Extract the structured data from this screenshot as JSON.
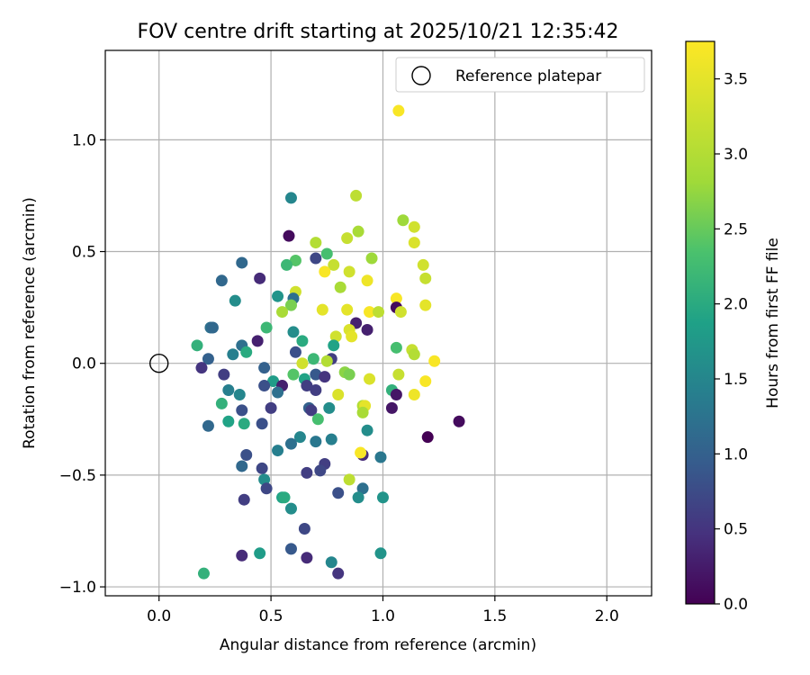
{
  "chart_data": {
    "type": "scatter",
    "title": "FOV centre drift starting at 2025/10/21 12:35:42",
    "xlabel": "Angular distance from reference (arcmin)",
    "ylabel": "Rotation from reference (arcmin)",
    "xlim": [
      -0.24,
      2.2
    ],
    "ylim": [
      -1.04,
      1.4
    ],
    "xticks": [
      0.0,
      0.5,
      1.0,
      1.5,
      2.0
    ],
    "xtick_labels": [
      "0.0",
      "0.5",
      "1.0",
      "1.5",
      "2.0"
    ],
    "yticks": [
      -1.0,
      -0.5,
      0.0,
      0.5,
      1.0
    ],
    "ytick_labels": [
      "−1.0",
      "−0.5",
      "0.0",
      "0.5",
      "1.0"
    ],
    "grid": true,
    "legend": {
      "placement": "top-right",
      "label": "Reference platepar"
    },
    "reference_point": {
      "x": 0.0,
      "y": 0.0
    },
    "colorbar": {
      "label": "Hours from first FF file",
      "min": 0.0,
      "max": 3.75,
      "ticks": [
        0.0,
        0.5,
        1.0,
        1.5,
        2.0,
        2.5,
        3.0,
        3.5
      ],
      "tick_labels": [
        "0.0",
        "0.5",
        "1.0",
        "1.5",
        "2.0",
        "2.5",
        "3.0",
        "3.5"
      ],
      "colormap": "viridis"
    },
    "points": [
      {
        "x": 1.07,
        "y": 1.13,
        "h": 3.7
      },
      {
        "x": 0.88,
        "y": 0.75,
        "h": 3.1
      },
      {
        "x": 0.59,
        "y": 0.74,
        "h": 1.5
      },
      {
        "x": 1.09,
        "y": 0.64,
        "h": 2.8
      },
      {
        "x": 1.14,
        "y": 0.61,
        "h": 3.3
      },
      {
        "x": 0.89,
        "y": 0.59,
        "h": 2.9
      },
      {
        "x": 0.58,
        "y": 0.57,
        "h": 0.1
      },
      {
        "x": 0.84,
        "y": 0.56,
        "h": 3.2
      },
      {
        "x": 0.7,
        "y": 0.54,
        "h": 3.0
      },
      {
        "x": 1.14,
        "y": 0.54,
        "h": 3.4
      },
      {
        "x": 0.75,
        "y": 0.49,
        "h": 2.3
      },
      {
        "x": 0.7,
        "y": 0.47,
        "h": 0.7
      },
      {
        "x": 0.95,
        "y": 0.47,
        "h": 2.8
      },
      {
        "x": 0.61,
        "y": 0.46,
        "h": 2.4
      },
      {
        "x": 0.57,
        "y": 0.44,
        "h": 2.2
      },
      {
        "x": 0.78,
        "y": 0.44,
        "h": 3.2
      },
      {
        "x": 1.18,
        "y": 0.44,
        "h": 3.3
      },
      {
        "x": 0.37,
        "y": 0.45,
        "h": 1.1
      },
      {
        "x": 0.85,
        "y": 0.41,
        "h": 3.3
      },
      {
        "x": 0.74,
        "y": 0.41,
        "h": 3.7
      },
      {
        "x": 0.45,
        "y": 0.38,
        "h": 0.4
      },
      {
        "x": 1.19,
        "y": 0.38,
        "h": 3.2
      },
      {
        "x": 0.93,
        "y": 0.37,
        "h": 3.6
      },
      {
        "x": 0.28,
        "y": 0.37,
        "h": 1.1
      },
      {
        "x": 0.81,
        "y": 0.34,
        "h": 2.9
      },
      {
        "x": 0.61,
        "y": 0.32,
        "h": 3.3
      },
      {
        "x": 0.53,
        "y": 0.3,
        "h": 1.7
      },
      {
        "x": 0.6,
        "y": 0.29,
        "h": 1.2
      },
      {
        "x": 1.06,
        "y": 0.29,
        "h": 3.7
      },
      {
        "x": 0.34,
        "y": 0.28,
        "h": 1.6
      },
      {
        "x": 0.59,
        "y": 0.26,
        "h": 2.6
      },
      {
        "x": 1.19,
        "y": 0.26,
        "h": 3.5
      },
      {
        "x": 1.06,
        "y": 0.25,
        "h": 0.1
      },
      {
        "x": 0.73,
        "y": 0.24,
        "h": 3.5
      },
      {
        "x": 0.84,
        "y": 0.24,
        "h": 3.5
      },
      {
        "x": 0.55,
        "y": 0.23,
        "h": 2.9
      },
      {
        "x": 0.94,
        "y": 0.23,
        "h": 3.7
      },
      {
        "x": 0.98,
        "y": 0.23,
        "h": 3.1
      },
      {
        "x": 1.08,
        "y": 0.23,
        "h": 3.3
      },
      {
        "x": 0.88,
        "y": 0.18,
        "h": 0.3
      },
      {
        "x": 0.23,
        "y": 0.16,
        "h": 1.2
      },
      {
        "x": 0.48,
        "y": 0.16,
        "h": 2.2
      },
      {
        "x": 0.24,
        "y": 0.16,
        "h": 1.1
      },
      {
        "x": 0.85,
        "y": 0.15,
        "h": 3.4
      },
      {
        "x": 0.93,
        "y": 0.15,
        "h": 0.3
      },
      {
        "x": 0.6,
        "y": 0.14,
        "h": 1.6
      },
      {
        "x": 0.86,
        "y": 0.12,
        "h": 3.5
      },
      {
        "x": 0.79,
        "y": 0.12,
        "h": 3.3
      },
      {
        "x": 0.64,
        "y": 0.1,
        "h": 2.0
      },
      {
        "x": 0.44,
        "y": 0.1,
        "h": 0.3
      },
      {
        "x": 0.78,
        "y": 0.08,
        "h": 1.9
      },
      {
        "x": 0.37,
        "y": 0.08,
        "h": 1.2
      },
      {
        "x": 0.17,
        "y": 0.08,
        "h": 2.1
      },
      {
        "x": 0.39,
        "y": 0.05,
        "h": 2.0
      },
      {
        "x": 0.61,
        "y": 0.05,
        "h": 0.8
      },
      {
        "x": 1.06,
        "y": 0.07,
        "h": 2.3
      },
      {
        "x": 1.13,
        "y": 0.06,
        "h": 3.2
      },
      {
        "x": 0.33,
        "y": 0.04,
        "h": 1.4
      },
      {
        "x": 1.14,
        "y": 0.04,
        "h": 3.0
      },
      {
        "x": 0.22,
        "y": 0.02,
        "h": 1.0
      },
      {
        "x": 0.77,
        "y": 0.02,
        "h": 0.6
      },
      {
        "x": 0.69,
        "y": 0.02,
        "h": 2.2
      },
      {
        "x": 0.64,
        "y": 0.0,
        "h": 3.3
      },
      {
        "x": 0.75,
        "y": 0.01,
        "h": 3.0
      },
      {
        "x": 1.23,
        "y": 0.01,
        "h": 3.7
      },
      {
        "x": 0.19,
        "y": -0.02,
        "h": 0.5
      },
      {
        "x": 0.29,
        "y": -0.05,
        "h": 0.6
      },
      {
        "x": 0.47,
        "y": -0.02,
        "h": 1.0
      },
      {
        "x": 0.6,
        "y": -0.05,
        "h": 2.4
      },
      {
        "x": 0.83,
        "y": -0.04,
        "h": 2.7
      },
      {
        "x": 0.85,
        "y": -0.05,
        "h": 2.6
      },
      {
        "x": 1.07,
        "y": -0.05,
        "h": 3.2
      },
      {
        "x": 0.7,
        "y": -0.05,
        "h": 0.9
      },
      {
        "x": 0.74,
        "y": -0.06,
        "h": 0.5
      },
      {
        "x": 0.65,
        "y": -0.07,
        "h": 1.9
      },
      {
        "x": 0.51,
        "y": -0.08,
        "h": 1.8
      },
      {
        "x": 0.94,
        "y": -0.07,
        "h": 3.4
      },
      {
        "x": 1.19,
        "y": -0.08,
        "h": 3.7
      },
      {
        "x": 0.66,
        "y": -0.1,
        "h": 0.6
      },
      {
        "x": 0.47,
        "y": -0.1,
        "h": 0.8
      },
      {
        "x": 0.55,
        "y": -0.1,
        "h": 0.3
      },
      {
        "x": 0.7,
        "y": -0.12,
        "h": 0.6
      },
      {
        "x": 1.04,
        "y": -0.12,
        "h": 2.1
      },
      {
        "x": 0.31,
        "y": -0.12,
        "h": 1.4
      },
      {
        "x": 0.53,
        "y": -0.13,
        "h": 1.2
      },
      {
        "x": 0.36,
        "y": -0.14,
        "h": 1.5
      },
      {
        "x": 0.8,
        "y": -0.14,
        "h": 3.4
      },
      {
        "x": 1.06,
        "y": -0.14,
        "h": 0.2
      },
      {
        "x": 1.14,
        "y": -0.14,
        "h": 3.6
      },
      {
        "x": 0.28,
        "y": -0.18,
        "h": 2.1
      },
      {
        "x": 0.91,
        "y": -0.19,
        "h": 3.0
      },
      {
        "x": 0.92,
        "y": -0.19,
        "h": 3.5
      },
      {
        "x": 0.76,
        "y": -0.2,
        "h": 1.6
      },
      {
        "x": 0.5,
        "y": -0.2,
        "h": 0.6
      },
      {
        "x": 0.67,
        "y": -0.2,
        "h": 1.0
      },
      {
        "x": 0.68,
        "y": -0.21,
        "h": 0.6
      },
      {
        "x": 1.04,
        "y": -0.2,
        "h": 0.2
      },
      {
        "x": 0.37,
        "y": -0.21,
        "h": 0.8
      },
      {
        "x": 0.91,
        "y": -0.22,
        "h": 2.9
      },
      {
        "x": 0.71,
        "y": -0.25,
        "h": 2.3
      },
      {
        "x": 0.31,
        "y": -0.26,
        "h": 1.9
      },
      {
        "x": 0.38,
        "y": -0.27,
        "h": 2.0
      },
      {
        "x": 0.46,
        "y": -0.27,
        "h": 0.8
      },
      {
        "x": 0.22,
        "y": -0.28,
        "h": 1.1
      },
      {
        "x": 0.93,
        "y": -0.3,
        "h": 1.6
      },
      {
        "x": 1.34,
        "y": -0.26,
        "h": 0.1
      },
      {
        "x": 1.2,
        "y": -0.33,
        "h": 0.0
      },
      {
        "x": 0.63,
        "y": -0.33,
        "h": 1.5
      },
      {
        "x": 0.7,
        "y": -0.35,
        "h": 1.3
      },
      {
        "x": 0.77,
        "y": -0.34,
        "h": 1.4
      },
      {
        "x": 0.59,
        "y": -0.36,
        "h": 1.2
      },
      {
        "x": 0.53,
        "y": -0.39,
        "h": 1.4
      },
      {
        "x": 0.91,
        "y": -0.41,
        "h": 0.4
      },
      {
        "x": 0.9,
        "y": -0.4,
        "h": 3.7
      },
      {
        "x": 0.99,
        "y": -0.42,
        "h": 1.3
      },
      {
        "x": 0.39,
        "y": -0.41,
        "h": 0.8
      },
      {
        "x": 0.74,
        "y": -0.45,
        "h": 0.6
      },
      {
        "x": 0.37,
        "y": -0.46,
        "h": 1.1
      },
      {
        "x": 0.46,
        "y": -0.47,
        "h": 0.7
      },
      {
        "x": 0.66,
        "y": -0.49,
        "h": 0.6
      },
      {
        "x": 0.72,
        "y": -0.48,
        "h": 0.7
      },
      {
        "x": 0.85,
        "y": -0.52,
        "h": 3.1
      },
      {
        "x": 0.47,
        "y": -0.52,
        "h": 1.6
      },
      {
        "x": 0.48,
        "y": -0.56,
        "h": 0.7
      },
      {
        "x": 0.91,
        "y": -0.56,
        "h": 1.2
      },
      {
        "x": 0.55,
        "y": -0.6,
        "h": 1.9
      },
      {
        "x": 0.56,
        "y": -0.6,
        "h": 2.0
      },
      {
        "x": 0.38,
        "y": -0.61,
        "h": 0.6
      },
      {
        "x": 0.89,
        "y": -0.6,
        "h": 1.6
      },
      {
        "x": 1.0,
        "y": -0.6,
        "h": 1.7
      },
      {
        "x": 0.8,
        "y": -0.58,
        "h": 0.8
      },
      {
        "x": 0.59,
        "y": -0.65,
        "h": 1.6
      },
      {
        "x": 0.65,
        "y": -0.74,
        "h": 0.7
      },
      {
        "x": 0.59,
        "y": -0.83,
        "h": 0.9
      },
      {
        "x": 0.45,
        "y": -0.85,
        "h": 1.8
      },
      {
        "x": 0.37,
        "y": -0.86,
        "h": 0.4
      },
      {
        "x": 0.66,
        "y": -0.87,
        "h": 0.4
      },
      {
        "x": 0.99,
        "y": -0.85,
        "h": 1.7
      },
      {
        "x": 0.77,
        "y": -0.89,
        "h": 1.5
      },
      {
        "x": 0.8,
        "y": -0.94,
        "h": 0.5
      },
      {
        "x": 0.2,
        "y": -0.94,
        "h": 2.1
      }
    ]
  }
}
